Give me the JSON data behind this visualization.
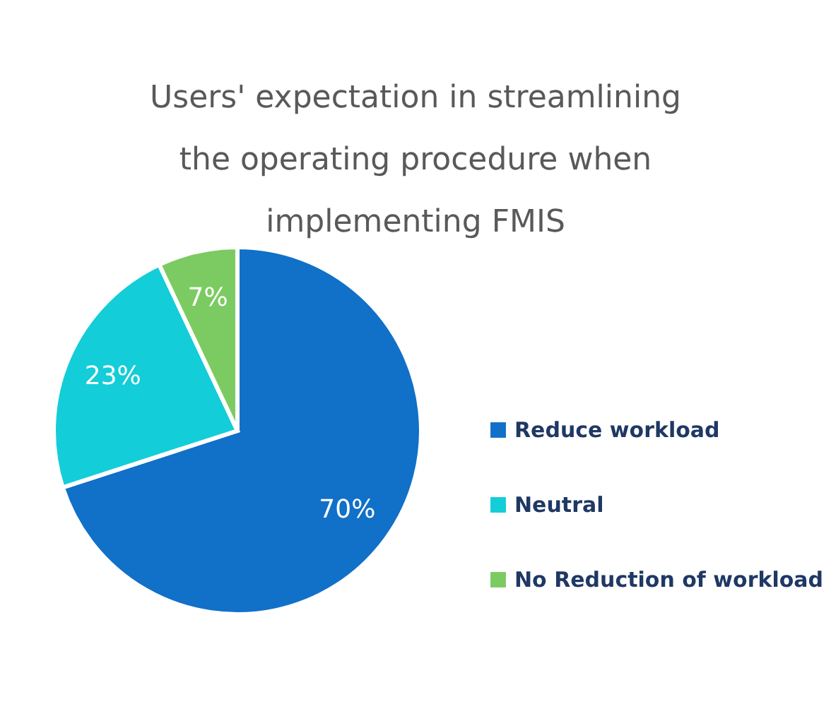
{
  "chart_data": {
    "type": "pie",
    "title": "Users' expectation in streamlining the operating procedure when implementing FMIS",
    "categories": [
      "Reduce workload",
      "Neutral",
      "No Reduction of workload"
    ],
    "values": [
      70,
      23,
      7
    ],
    "colors": [
      "#1170c8",
      "#13cdd8",
      "#7ccb62"
    ],
    "value_labels": [
      "70%",
      "23%",
      "7%"
    ],
    "legend": "right"
  }
}
